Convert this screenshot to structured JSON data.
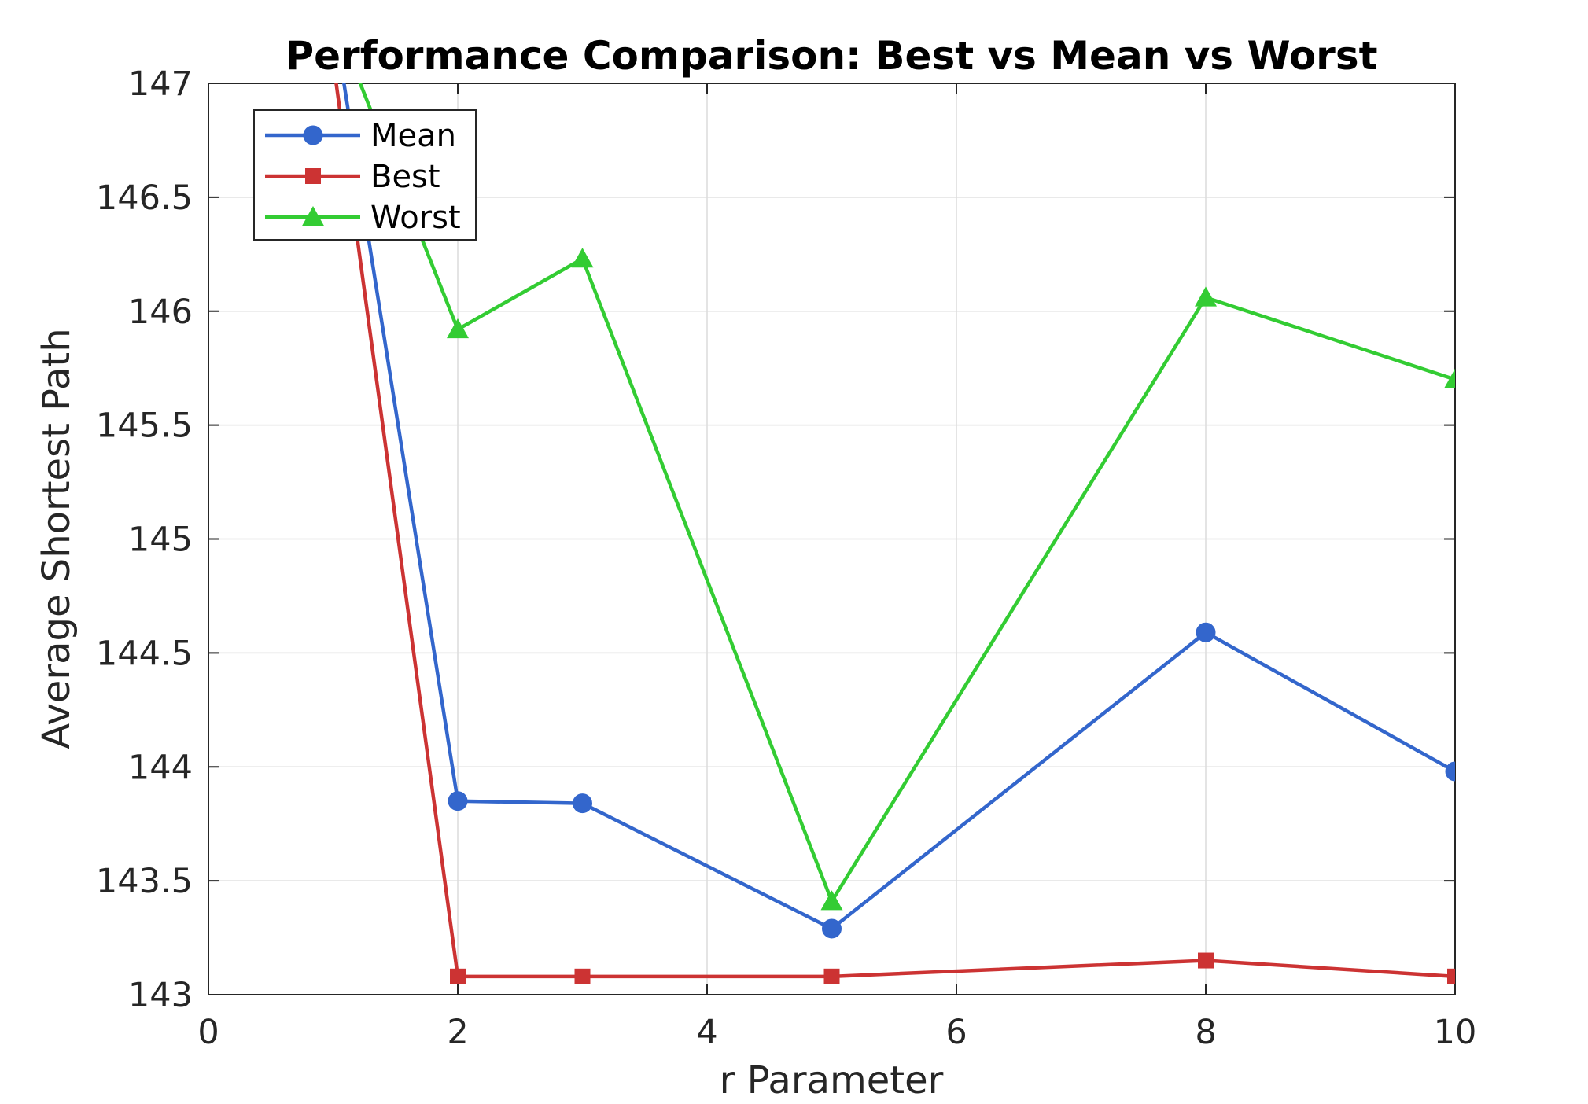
{
  "chart_data": {
    "type": "line",
    "title": "Performance Comparison: Best vs Mean vs Worst",
    "xlabel": "r Parameter",
    "ylabel": "Average Shortest Path",
    "xlim": [
      0,
      10
    ],
    "ylim": [
      143,
      147
    ],
    "xticks": [
      0,
      2,
      4,
      6,
      8,
      10
    ],
    "yticks": [
      143,
      143.5,
      144,
      144.5,
      145,
      145.5,
      146,
      146.5,
      147
    ],
    "grid": true,
    "legend_position": "top-left",
    "x": [
      1,
      2,
      3,
      5,
      8,
      10
    ],
    "series": [
      {
        "name": "Mean",
        "color": "#3366cc",
        "marker": "circle",
        "values": [
          147.3,
          143.85,
          143.84,
          143.29,
          144.59,
          143.98
        ]
      },
      {
        "name": "Best",
        "color": "#cc3333",
        "marker": "square",
        "values": [
          147.1,
          143.08,
          143.08,
          143.08,
          143.15,
          143.08
        ]
      },
      {
        "name": "Worst",
        "color": "#33cc33",
        "marker": "triangle",
        "values": [
          147.3,
          145.92,
          146.23,
          143.41,
          146.06,
          145.7
        ]
      }
    ]
  }
}
